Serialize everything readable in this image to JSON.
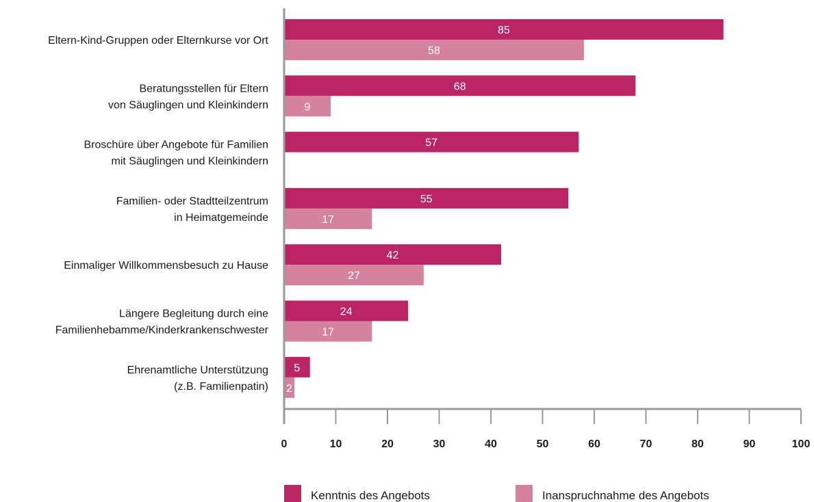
{
  "chart_data": {
    "type": "bar",
    "orientation": "horizontal",
    "categories": [
      [
        "Eltern-Kind-Gruppen oder Elternkurse vor Ort"
      ],
      [
        "Beratungsstellen für Eltern",
        "von Säuglingen und Kleinkindern"
      ],
      [
        "Broschüre über Angebote für Familien",
        "mit Säuglingen und Kleinkindern"
      ],
      [
        "Familien- oder Stadtteilzentrum",
        "in Heimatgemeinde"
      ],
      [
        "Einmaliger Willkommensbesuch zu Hause"
      ],
      [
        "Längere Begleitung durch eine",
        "Familienhebamme/Kinderkrankenschwester"
      ],
      [
        "Ehrenamtliche Unterstützung",
        "(z.B. Familienpatin)"
      ]
    ],
    "series": [
      {
        "name": "Kenntnis des Angebots",
        "color": "#bb2566",
        "values": [
          85,
          68,
          57,
          55,
          42,
          24,
          5
        ]
      },
      {
        "name": "Inanspruchnahme des Angebots",
        "color": "#d5839d",
        "values": [
          58,
          9,
          null,
          17,
          27,
          17,
          2
        ]
      }
    ],
    "xlim": [
      0,
      100
    ],
    "xticks": [
      0,
      10,
      20,
      30,
      40,
      50,
      60,
      70,
      80,
      90,
      100
    ],
    "axis_color": "#999999",
    "grid": false,
    "legend_position": "bottom",
    "data_labels": true
  }
}
